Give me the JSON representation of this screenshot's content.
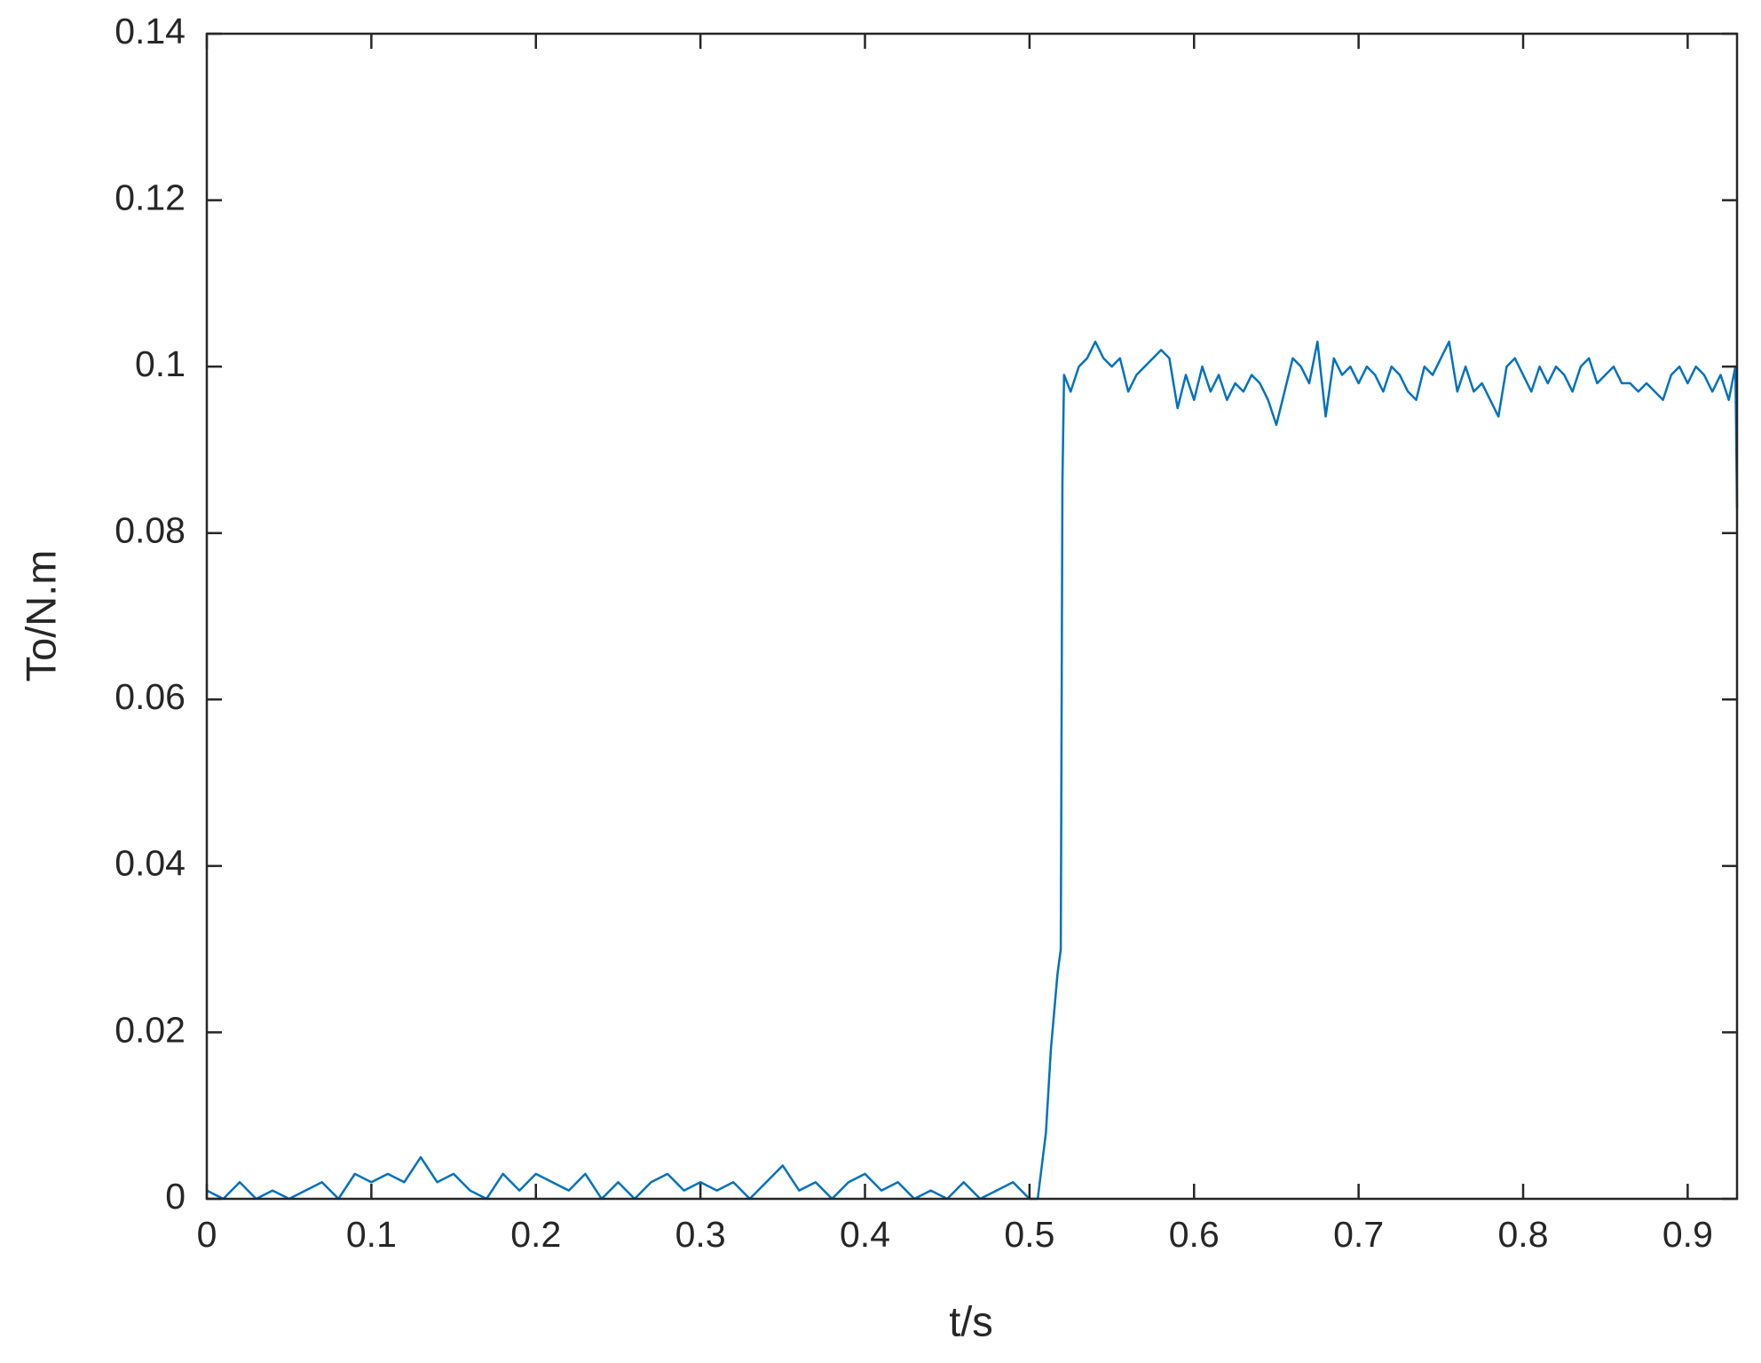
{
  "chart_data": {
    "type": "line",
    "x_label": "t/s",
    "y_label": "To/N.m",
    "color": "#0072bd",
    "xlim": [
      0,
      0.93
    ],
    "ylim": [
      0,
      0.14
    ],
    "xticks": [
      0,
      0.1,
      0.2,
      0.3,
      0.4,
      0.5,
      0.6,
      0.7,
      0.8,
      0.9
    ],
    "yticks": [
      0,
      0.02,
      0.04,
      0.06,
      0.08,
      0.1,
      0.12,
      0.14
    ],
    "x": [
      0,
      0.01,
      0.02,
      0.03,
      0.04,
      0.05,
      0.06,
      0.07,
      0.08,
      0.09,
      0.1,
      0.11,
      0.12,
      0.13,
      0.14,
      0.15,
      0.16,
      0.17,
      0.18,
      0.19,
      0.2,
      0.21,
      0.22,
      0.23,
      0.24,
      0.25,
      0.26,
      0.27,
      0.28,
      0.29,
      0.3,
      0.31,
      0.32,
      0.33,
      0.34,
      0.35,
      0.36,
      0.37,
      0.38,
      0.39,
      0.4,
      0.41,
      0.42,
      0.43,
      0.44,
      0.45,
      0.46,
      0.47,
      0.48,
      0.49,
      0.5,
      0.505,
      0.51,
      0.513,
      0.517,
      0.519,
      0.52,
      0.521,
      0.525,
      0.53,
      0.535,
      0.54,
      0.545,
      0.55,
      0.555,
      0.56,
      0.565,
      0.57,
      0.575,
      0.58,
      0.585,
      0.59,
      0.595,
      0.6,
      0.605,
      0.61,
      0.615,
      0.62,
      0.625,
      0.63,
      0.635,
      0.64,
      0.645,
      0.65,
      0.655,
      0.66,
      0.665,
      0.67,
      0.675,
      0.68,
      0.685,
      0.69,
      0.695,
      0.7,
      0.705,
      0.71,
      0.715,
      0.72,
      0.725,
      0.73,
      0.735,
      0.74,
      0.745,
      0.75,
      0.755,
      0.76,
      0.765,
      0.77,
      0.775,
      0.78,
      0.785,
      0.79,
      0.795,
      0.8,
      0.805,
      0.81,
      0.815,
      0.82,
      0.825,
      0.83,
      0.835,
      0.84,
      0.845,
      0.85,
      0.855,
      0.86,
      0.865,
      0.87,
      0.875,
      0.88,
      0.885,
      0.89,
      0.895,
      0.9,
      0.905,
      0.91,
      0.915,
      0.92,
      0.925,
      0.929,
      0.93
    ],
    "values": [
      0.001,
      0,
      0.002,
      0,
      0.001,
      0,
      0.001,
      0.002,
      0,
      0.003,
      0.002,
      0.003,
      0.002,
      0.005,
      0.002,
      0.003,
      0.001,
      0,
      0.003,
      0.001,
      0.003,
      0.002,
      0.001,
      0.003,
      0,
      0.002,
      0,
      0.002,
      0.003,
      0.001,
      0.002,
      0.001,
      0.002,
      0,
      0.002,
      0.004,
      0.001,
      0.002,
      0,
      0.002,
      0.003,
      0.001,
      0.002,
      0,
      0.001,
      0,
      0.002,
      0,
      0.001,
      0.002,
      0,
      0,
      0.008,
      0.018,
      0.027,
      0.03,
      0.086,
      0.099,
      0.097,
      0.1,
      0.101,
      0.103,
      0.101,
      0.1,
      0.101,
      0.097,
      0.099,
      0.1,
      0.101,
      0.102,
      0.101,
      0.095,
      0.099,
      0.096,
      0.1,
      0.097,
      0.099,
      0.096,
      0.098,
      0.097,
      0.099,
      0.098,
      0.096,
      0.093,
      0.097,
      0.101,
      0.1,
      0.098,
      0.103,
      0.094,
      0.101,
      0.099,
      0.1,
      0.098,
      0.1,
      0.099,
      0.097,
      0.1,
      0.099,
      0.097,
      0.096,
      0.1,
      0.099,
      0.101,
      0.103,
      0.097,
      0.1,
      0.097,
      0.098,
      0.096,
      0.094,
      0.1,
      0.101,
      0.099,
      0.097,
      0.1,
      0.098,
      0.1,
      0.099,
      0.097,
      0.1,
      0.101,
      0.098,
      0.099,
      0.1,
      0.098,
      0.098,
      0.097,
      0.098,
      0.097,
      0.096,
      0.099,
      0.1,
      0.098,
      0.1,
      0.099,
      0.097,
      0.099,
      0.096,
      0.1,
      0.083
    ]
  }
}
